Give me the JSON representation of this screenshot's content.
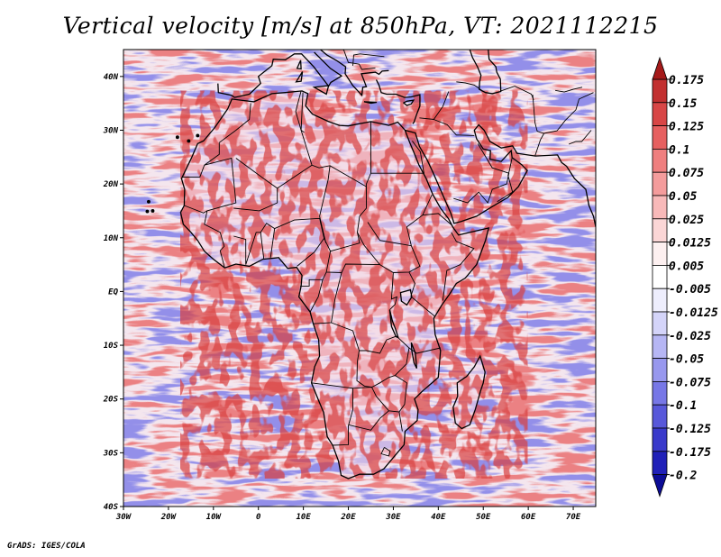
{
  "title": "Vertical velocity [m/s] at 850hPa, VT: 2021112215",
  "credit": "GrADS: IGES/COLA",
  "map": {
    "lat_ticks": [
      "40N",
      "30N",
      "20N",
      "10N",
      "EQ",
      "10S",
      "20S",
      "30S",
      "40S"
    ],
    "lon_ticks": [
      "30W",
      "20W",
      "10W",
      "0",
      "10E",
      "20E",
      "30E",
      "40E",
      "50E",
      "60E",
      "70E"
    ],
    "lat_range": [
      -40,
      45
    ],
    "lon_range": [
      -30,
      75
    ]
  },
  "colorbar": {
    "labels": [
      "0.175",
      "0.15",
      "0.125",
      "0.1",
      "0.075",
      "0.05",
      "0.025",
      "0.0125",
      "0.005",
      "-0.005",
      "-0.0125",
      "-0.025",
      "-0.05",
      "-0.075",
      "-0.1",
      "-0.125",
      "-0.175",
      "-0.2"
    ],
    "colors": [
      "#a51a1a",
      "#c23030",
      "#d84646",
      "#e66060",
      "#ef7f7f",
      "#f49c9c",
      "#f8b9b9",
      "#fbd6d6",
      "#fdf0f0",
      "#ffffff",
      "#eeeefd",
      "#d4d4f9",
      "#b6b6f4",
      "#9898ee",
      "#7777e6",
      "#5858da",
      "#3a3acb",
      "#2020b8",
      "#0c0c96"
    ]
  },
  "colors": {
    "red": "#e05858",
    "blue": "#6a6ae6",
    "border": "#000000"
  }
}
